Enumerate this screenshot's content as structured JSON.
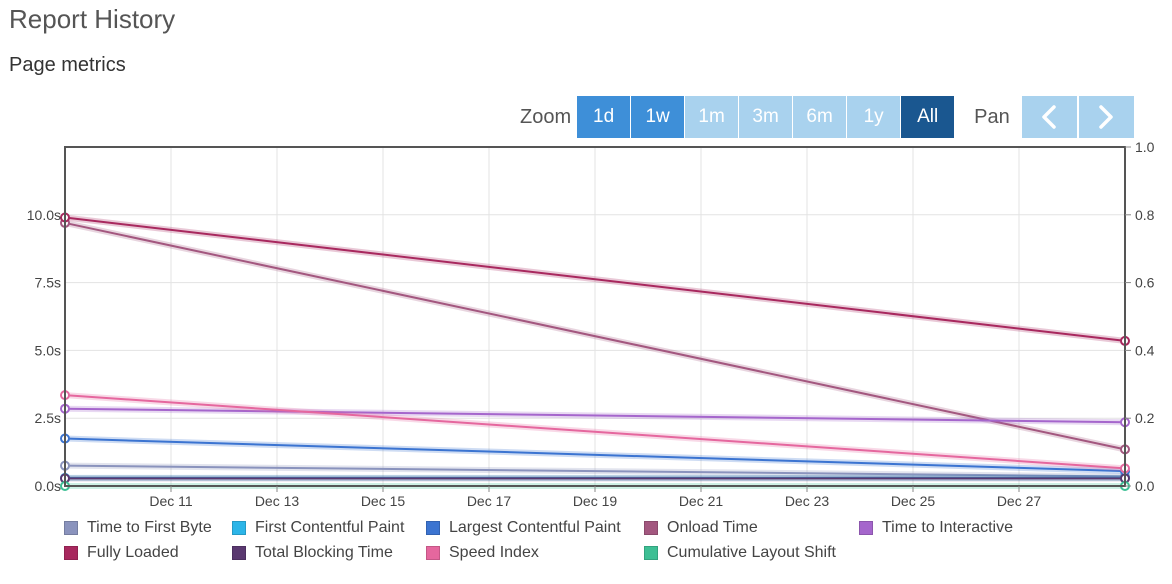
{
  "header": {
    "title": "Report History",
    "section": "Page metrics"
  },
  "toolbar": {
    "zoom_label": "Zoom",
    "zoom_options": [
      {
        "label": "1d",
        "state": "active"
      },
      {
        "label": "1w",
        "state": "active"
      },
      {
        "label": "1m",
        "state": "inactive"
      },
      {
        "label": "3m",
        "state": "inactive"
      },
      {
        "label": "6m",
        "state": "inactive"
      },
      {
        "label": "1y",
        "state": "inactive"
      },
      {
        "label": "All",
        "state": "selected"
      }
    ],
    "pan_label": "Pan",
    "pan_icons": [
      "chevron-left-icon",
      "chevron-right-icon"
    ]
  },
  "colors": {
    "active": "#3e8fd8",
    "inactive": "#a9d2ee",
    "selected": "#1a5790"
  },
  "chart_data": {
    "type": "line",
    "grid": true,
    "legend_position": "bottom",
    "x_domain": [
      "2018-12-09",
      "2018-12-29"
    ],
    "x_ticks": [
      {
        "date": "2018-12-11",
        "label": "Dec 11"
      },
      {
        "date": "2018-12-13",
        "label": "Dec 13"
      },
      {
        "date": "2018-12-15",
        "label": "Dec 15"
      },
      {
        "date": "2018-12-17",
        "label": "Dec 17"
      },
      {
        "date": "2018-12-19",
        "label": "Dec 19"
      },
      {
        "date": "2018-12-21",
        "label": "Dec 21"
      },
      {
        "date": "2018-12-23",
        "label": "Dec 23"
      },
      {
        "date": "2018-12-25",
        "label": "Dec 25"
      },
      {
        "date": "2018-12-27",
        "label": "Dec 27"
      }
    ],
    "y_left": {
      "unit": "s",
      "range": [
        0,
        12.5
      ],
      "ticks": [
        {
          "value": 0,
          "label": "0.0s"
        },
        {
          "value": 2.5,
          "label": "2.5s"
        },
        {
          "value": 5,
          "label": "5.0s"
        },
        {
          "value": 7.5,
          "label": "7.5s"
        },
        {
          "value": 10,
          "label": "10.0s"
        }
      ]
    },
    "y_right": {
      "range": [
        0,
        1
      ],
      "ticks": [
        {
          "value": 0,
          "label": "0.0"
        },
        {
          "value": 0.2,
          "label": "0.2"
        },
        {
          "value": 0.4,
          "label": "0.4"
        },
        {
          "value": 0.6,
          "label": "0.6"
        },
        {
          "value": 0.8,
          "label": "0.8"
        },
        {
          "value": 1,
          "label": "1.0"
        }
      ]
    },
    "series": [
      {
        "name": "Time to First Byte",
        "color": "#8a93bd",
        "axis": "left",
        "points": [
          {
            "date": "2018-12-09",
            "y": 0.75
          },
          {
            "date": "2018-12-29",
            "y": 0.35
          }
        ]
      },
      {
        "name": "First Contentful Paint",
        "color": "#2cb5e8",
        "axis": "left",
        "points": [
          {
            "date": "2018-12-09",
            "y": 0.3
          },
          {
            "date": "2018-12-29",
            "y": 0.3
          }
        ]
      },
      {
        "name": "Largest Contentful Paint",
        "color": "#3b74d1",
        "axis": "left",
        "points": [
          {
            "date": "2018-12-09",
            "y": 1.75
          },
          {
            "date": "2018-12-29",
            "y": 0.55
          }
        ]
      },
      {
        "name": "Onload Time",
        "color": "#a3577f",
        "axis": "left",
        "points": [
          {
            "date": "2018-12-09",
            "y": 9.7
          },
          {
            "date": "2018-12-29",
            "y": 1.35
          }
        ]
      },
      {
        "name": "Time to Interactive",
        "color": "#a566cc",
        "axis": "left",
        "points": [
          {
            "date": "2018-12-09",
            "y": 2.85
          },
          {
            "date": "2018-12-29",
            "y": 2.35
          }
        ]
      },
      {
        "name": "Fully Loaded",
        "color": "#a8285e",
        "axis": "left",
        "points": [
          {
            "date": "2018-12-09",
            "y": 9.9
          },
          {
            "date": "2018-12-29",
            "y": 5.35
          }
        ]
      },
      {
        "name": "Total Blocking Time",
        "color": "#5a3870",
        "axis": "left",
        "points": [
          {
            "date": "2018-12-09",
            "y": 0.28
          },
          {
            "date": "2018-12-29",
            "y": 0.28
          }
        ]
      },
      {
        "name": "Speed Index",
        "color": "#e5679e",
        "axis": "left",
        "points": [
          {
            "date": "2018-12-09",
            "y": 3.35
          },
          {
            "date": "2018-12-29",
            "y": 0.65
          }
        ]
      },
      {
        "name": "Cumulative Layout Shift",
        "color": "#3dbf94",
        "axis": "right",
        "points": [
          {
            "date": "2018-12-09",
            "y": 0.0
          },
          {
            "date": "2018-12-29",
            "y": 0.0
          }
        ]
      }
    ]
  }
}
